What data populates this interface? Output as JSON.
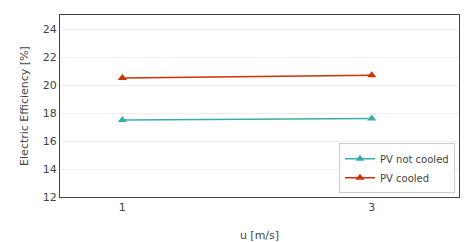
{
  "chart_data": {
    "type": "line",
    "x": [
      1,
      3
    ],
    "series": [
      {
        "name": "PV not cooled",
        "color": "#3aacac",
        "values": [
          17.5,
          17.6
        ]
      },
      {
        "name": "PV cooled",
        "color": "#cc3300",
        "values": [
          20.5,
          20.7
        ]
      }
    ],
    "marker": "triangle-up",
    "xlabel": "u [m/s]",
    "ylabel": "Electric Efficiency [%]",
    "xlim": [
      0.5,
      3.7
    ],
    "xticks": [
      1,
      3
    ],
    "ylim": [
      12,
      25
    ],
    "yticks": [
      12,
      14,
      16,
      18,
      20,
      22,
      24
    ],
    "grid": "y",
    "legend": "lower right"
  }
}
